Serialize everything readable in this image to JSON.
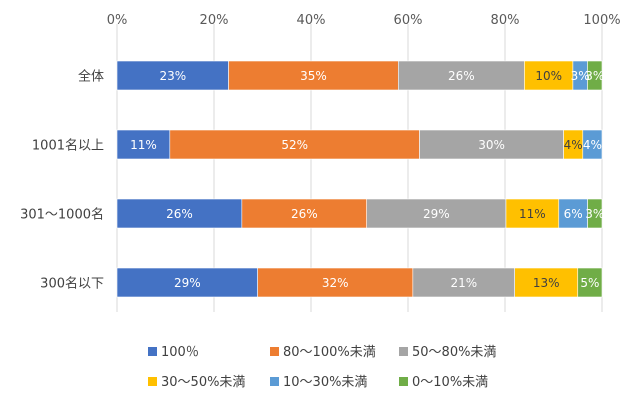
{
  "chart_data": {
    "type": "bar",
    "orientation": "horizontal",
    "stacking": "percent",
    "title": "",
    "xlabel": "",
    "ylabel": "",
    "xlim": [
      0,
      100
    ],
    "x_ticks": [
      "0%",
      "20%",
      "40%",
      "60%",
      "80%",
      "100%"
    ],
    "x_axis_position": "top",
    "grid": "vertical",
    "legend_position": "bottom",
    "categories": [
      "全体",
      "1001名以上",
      "301～1000名",
      "300名以下"
    ],
    "series": [
      {
        "name": "100％",
        "color": "#4472c4",
        "values": [
          23,
          11,
          26,
          29
        ],
        "labels": [
          "23%",
          "11%",
          "26%",
          "29%"
        ]
      },
      {
        "name": "80～100%未満",
        "color": "#ed7d31",
        "values": [
          35,
          52,
          26,
          32
        ],
        "labels": [
          "35%",
          "52%",
          "26%",
          "32%"
        ]
      },
      {
        "name": "50～80%未満",
        "color": "#a5a5a5",
        "values": [
          26,
          30,
          29,
          21
        ],
        "labels": [
          "26%",
          "30%",
          "29%",
          "21%"
        ]
      },
      {
        "name": "30～50%未満",
        "color": "#ffc000",
        "values": [
          10,
          4,
          11,
          13
        ],
        "labels": [
          "10%",
          "4%",
          "11%",
          "13%"
        ]
      },
      {
        "name": "10～30%未満",
        "color": "#5b9bd5",
        "values": [
          3,
          4,
          6,
          0
        ],
        "labels": [
          "3%",
          "4%",
          "6%",
          ""
        ]
      },
      {
        "name": "0～10%未満",
        "color": "#70ad47",
        "values": [
          3,
          0,
          3,
          5
        ],
        "labels": [
          "3%",
          "",
          "3%",
          "5%"
        ]
      }
    ]
  }
}
